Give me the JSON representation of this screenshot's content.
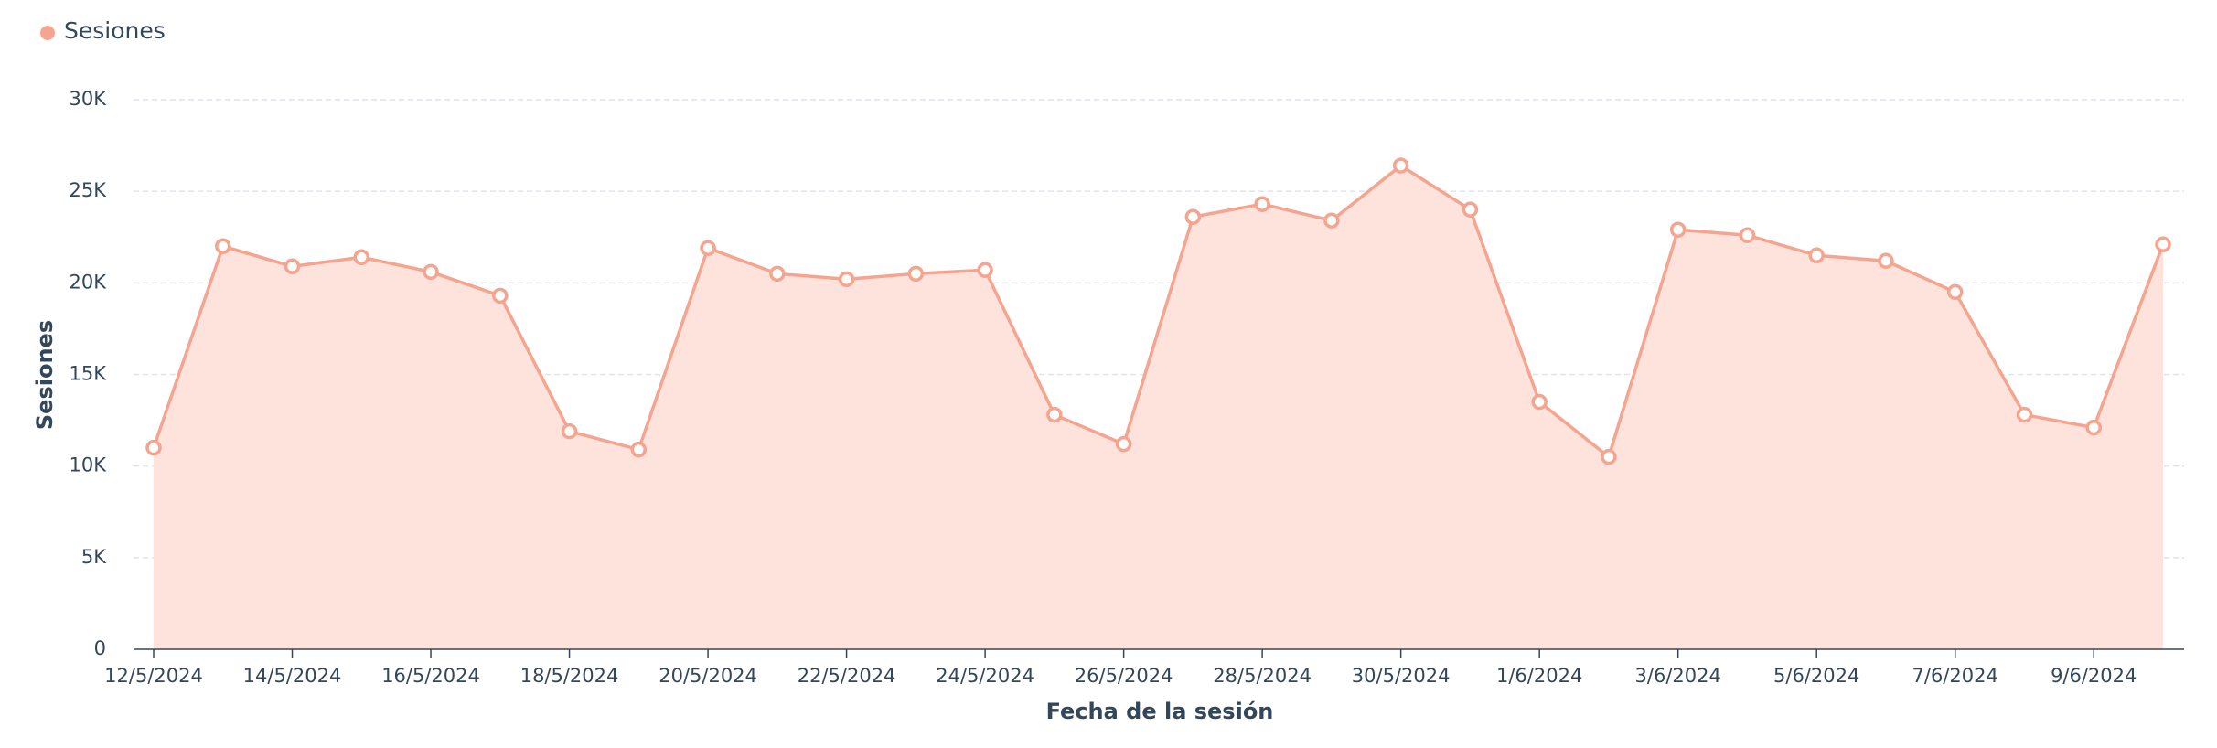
{
  "chart_data": {
    "type": "area",
    "x_label": "Fecha de la sesión",
    "y_label": "Sesiones",
    "categories": [
      "12/5/2024",
      null,
      "14/5/2024",
      null,
      "16/5/2024",
      null,
      "18/5/2024",
      null,
      "20/5/2024",
      null,
      "22/5/2024",
      null,
      "24/5/2024",
      null,
      "26/5/2024",
      null,
      "28/5/2024",
      null,
      "30/5/2024",
      null,
      "1/6/2024",
      null,
      "3/6/2024",
      null,
      "5/6/2024",
      null,
      "7/6/2024",
      null,
      "9/6/2024",
      null
    ],
    "series": [
      {
        "name": "Sesiones",
        "color": "#f5a58f",
        "fill": "#fde3dc",
        "values": [
          11000,
          22000,
          20900,
          21400,
          20600,
          19300,
          11900,
          10900,
          21900,
          20500,
          20200,
          20500,
          20700,
          12800,
          11200,
          23600,
          24300,
          23400,
          26400,
          24000,
          13500,
          10500,
          22900,
          22600,
          21500,
          21200,
          19500,
          12800,
          12100,
          22100
        ]
      }
    ],
    "ylim": [
      0,
      30000
    ],
    "yticks": [
      0,
      {
        "value": 5000,
        "label": "5K"
      },
      {
        "value": 10000,
        "label": "10K"
      },
      {
        "value": 15000,
        "label": "15K"
      },
      {
        "value": 20000,
        "label": "20K"
      },
      {
        "value": 25000,
        "label": "25K"
      },
      {
        "value": 30000,
        "label": "30K"
      }
    ],
    "grid": true,
    "legend": "top-left"
  }
}
